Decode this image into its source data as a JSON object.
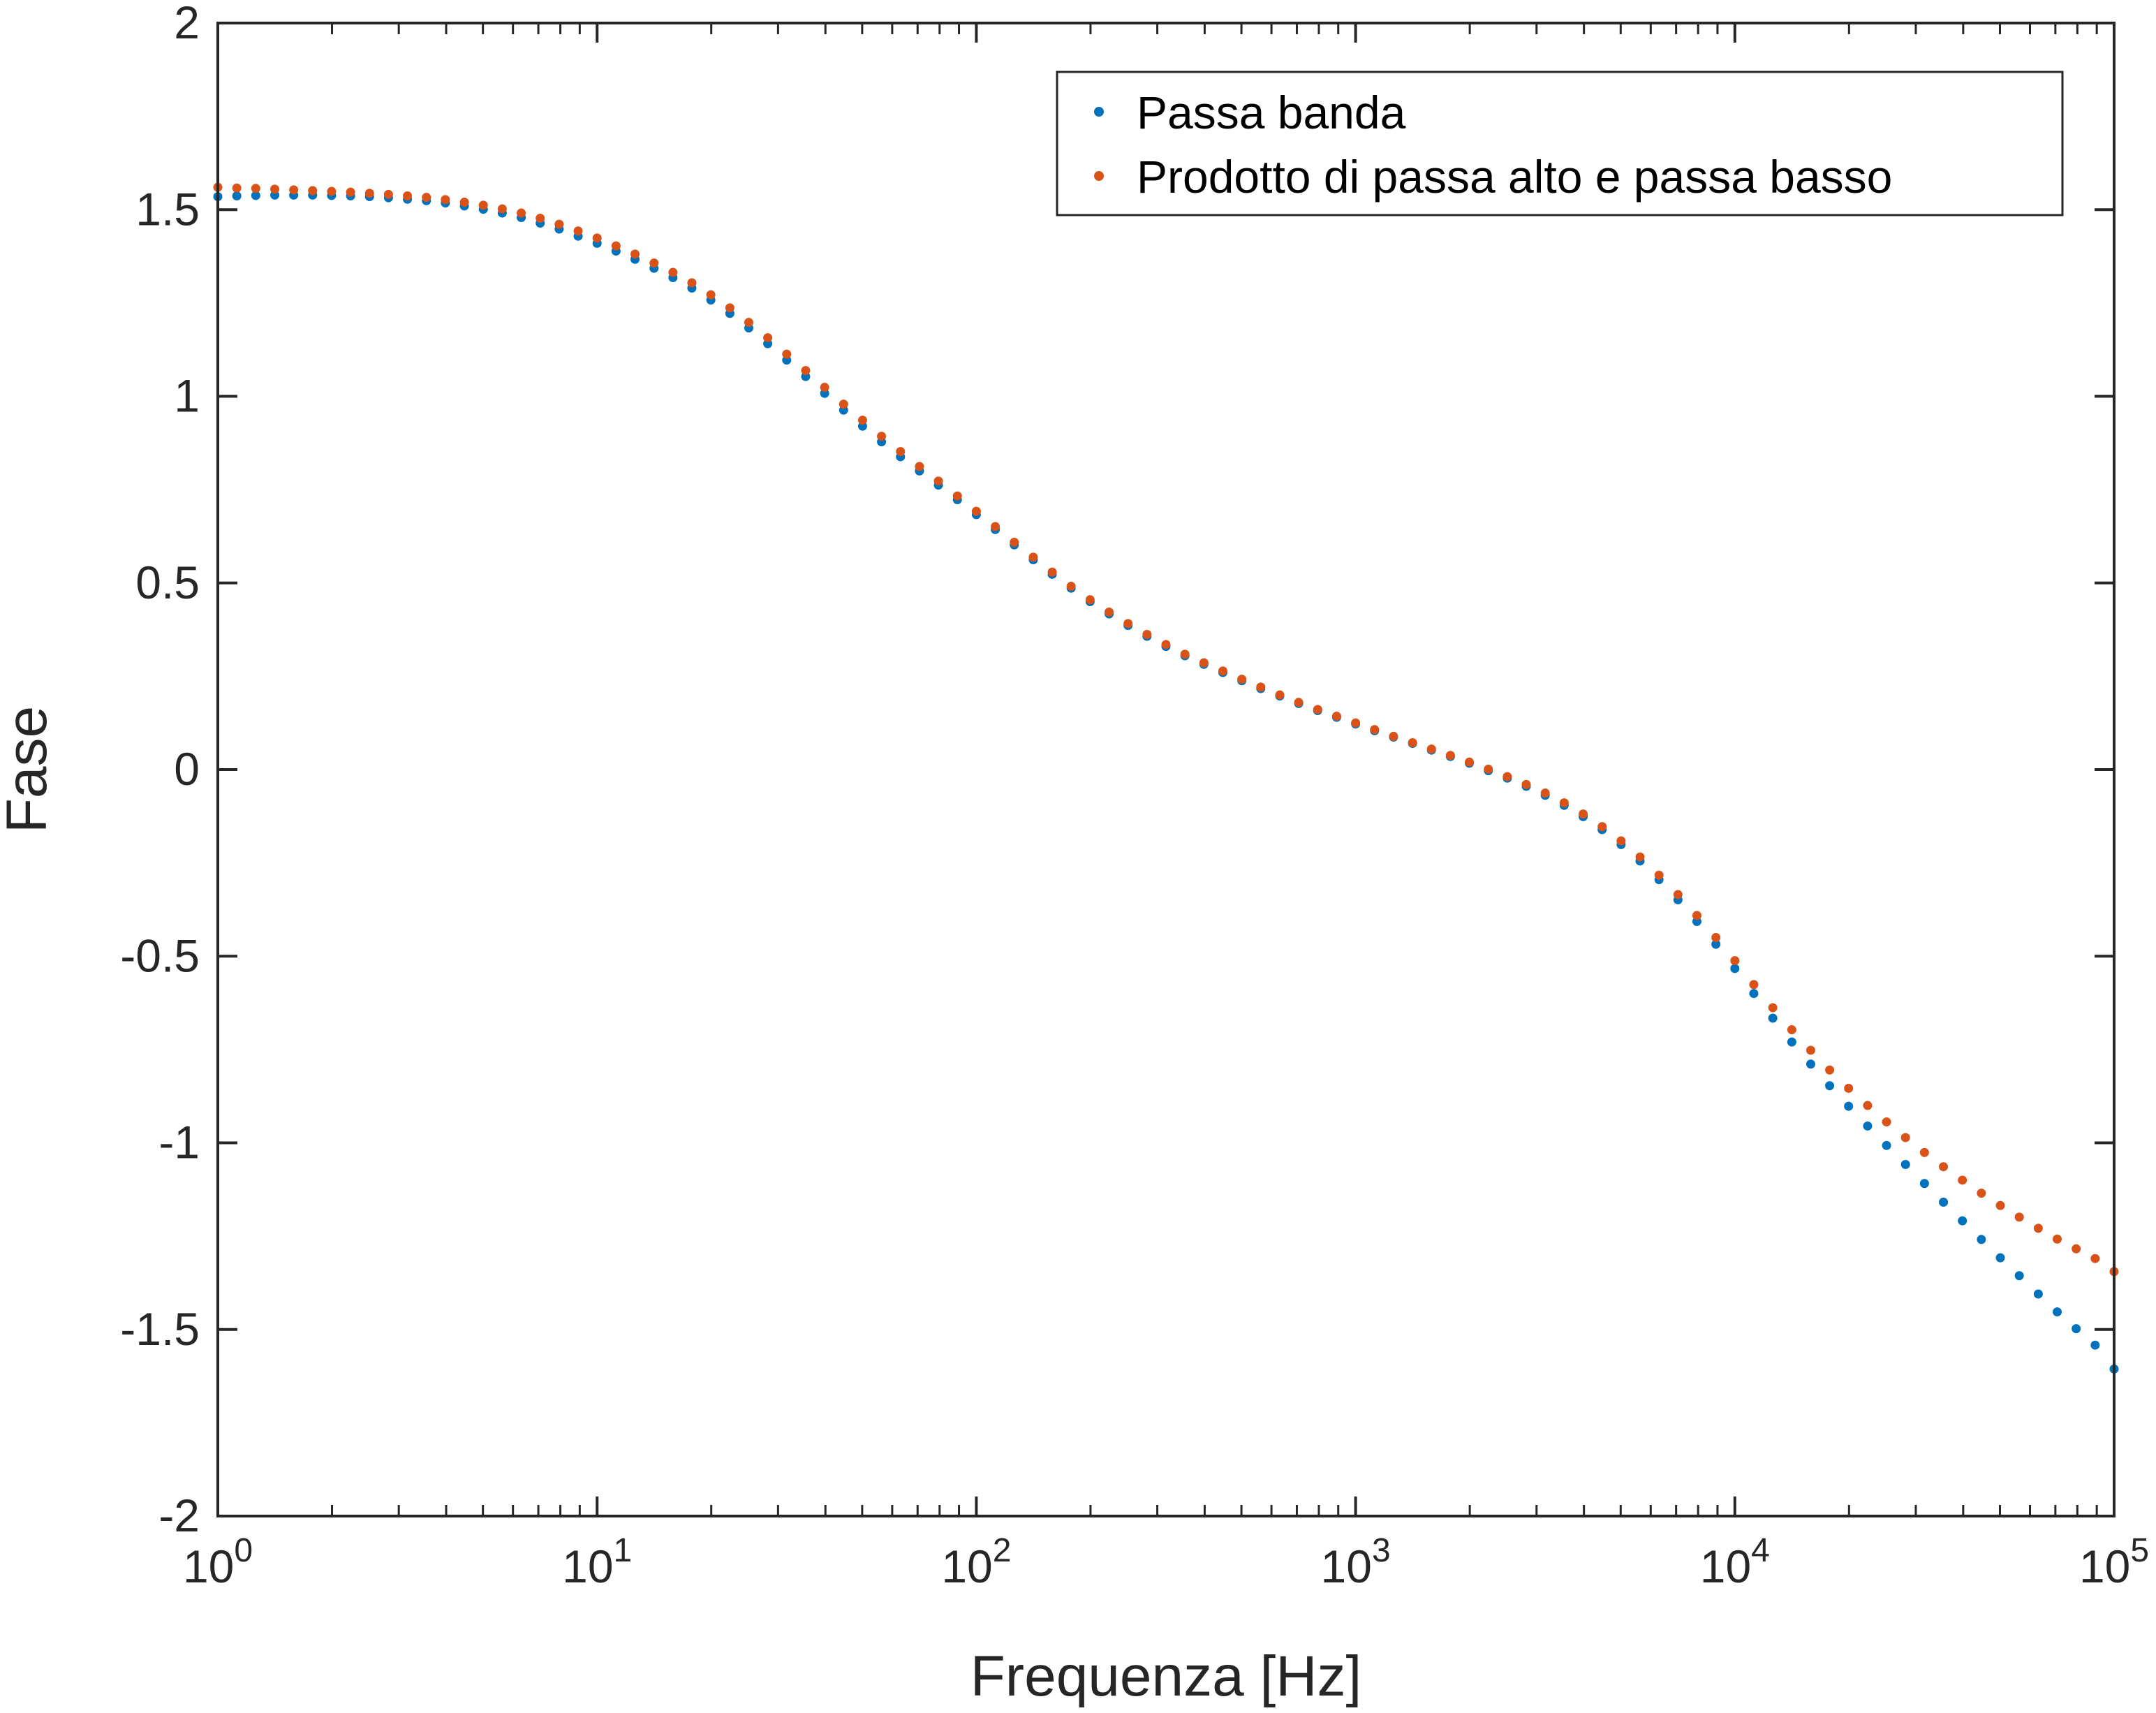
{
  "chart_data": {
    "type": "scatter",
    "xlabel": "Frequenza [Hz]",
    "ylabel": "Fase",
    "xscale": "log",
    "xlim": [
      1,
      100000
    ],
    "ylim": [
      -2,
      2
    ],
    "xticks": [
      {
        "value": 1,
        "base": "10",
        "exp": "0"
      },
      {
        "value": 10,
        "base": "10",
        "exp": "1"
      },
      {
        "value": 100,
        "base": "10",
        "exp": "2"
      },
      {
        "value": 1000,
        "base": "10",
        "exp": "3"
      },
      {
        "value": 10000,
        "base": "10",
        "exp": "4"
      },
      {
        "value": 100000,
        "base": "10",
        "exp": "5"
      }
    ],
    "yticks": [
      {
        "value": 2,
        "label": "2"
      },
      {
        "value": 1.5,
        "label": "1.5"
      },
      {
        "value": 1,
        "label": "1"
      },
      {
        "value": 0.5,
        "label": "0.5"
      },
      {
        "value": 0,
        "label": "0"
      },
      {
        "value": -0.5,
        "label": "-0.5"
      },
      {
        "value": -1,
        "label": "-1"
      },
      {
        "value": -1.5,
        "label": "-1.5"
      },
      {
        "value": -2,
        "label": "-2"
      }
    ],
    "grid": false,
    "legend_position": "top-right",
    "series": [
      {
        "name": "Passa banda",
        "color": "#0072BD",
        "x": [
          1,
          1.122,
          1.259,
          1.413,
          1.585,
          1.778,
          1.995,
          2.239,
          2.512,
          2.818,
          3.162,
          3.548,
          3.981,
          4.467,
          5.012,
          5.623,
          6.31,
          7.079,
          7.943,
          8.913,
          10,
          11.22,
          12.59,
          14.13,
          15.85,
          17.78,
          19.95,
          22.39,
          25.12,
          28.18,
          31.62,
          35.48,
          39.81,
          44.67,
          50.12,
          56.23,
          63.1,
          70.79,
          79.43,
          89.13,
          100,
          112.2,
          125.9,
          141.3,
          158.5,
          177.8,
          199.5,
          223.9,
          251.2,
          281.8,
          316.2,
          354.8,
          398.1,
          446.7,
          501.2,
          562.3,
          631,
          707.9,
          794.3,
          891.3,
          1000,
          1122,
          1259,
          1413,
          1585,
          1778,
          1995,
          2239,
          2512,
          2818,
          3162,
          3548,
          3981,
          4467,
          5012,
          5623,
          6310,
          7079,
          7943,
          8913,
          10000,
          11220,
          12590,
          14130,
          15850,
          17780,
          19950,
          22390,
          25120,
          28180,
          31620,
          35480,
          39810,
          44670,
          50120,
          56230,
          63100,
          70790,
          79430,
          89130,
          100000
        ],
        "y": [
          1.535,
          1.537,
          1.538,
          1.539,
          1.539,
          1.539,
          1.538,
          1.537,
          1.535,
          1.532,
          1.528,
          1.524,
          1.518,
          1.51,
          1.501,
          1.491,
          1.479,
          1.464,
          1.448,
          1.429,
          1.41,
          1.389,
          1.367,
          1.343,
          1.318,
          1.29,
          1.258,
          1.222,
          1.183,
          1.141,
          1.097,
          1.053,
          1.008,
          0.963,
          0.92,
          0.878,
          0.838,
          0.8,
          0.762,
          0.723,
          0.683,
          0.643,
          0.602,
          0.562,
          0.523,
          0.486,
          0.45,
          0.417,
          0.386,
          0.357,
          0.33,
          0.305,
          0.282,
          0.26,
          0.238,
          0.217,
          0.197,
          0.177,
          0.158,
          0.14,
          0.122,
          0.104,
          0.087,
          0.07,
          0.052,
          0.035,
          0.017,
          -0.003,
          -0.023,
          -0.045,
          -0.069,
          -0.096,
          -0.126,
          -0.161,
          -0.201,
          -0.245,
          -0.295,
          -0.349,
          -0.407,
          -0.468,
          -0.533,
          -0.6,
          -0.666,
          -0.73,
          -0.789,
          -0.847,
          -0.902,
          -0.955,
          -1.007,
          -1.058,
          -1.109,
          -1.159,
          -1.209,
          -1.259,
          -1.308,
          -1.356,
          -1.405,
          -1.453,
          -1.498,
          -1.542,
          -1.606
        ]
      },
      {
        "name": "Prodotto di passa alto e passa basso",
        "color": "#D95319",
        "x": [
          1,
          1.122,
          1.259,
          1.413,
          1.585,
          1.778,
          1.995,
          2.239,
          2.512,
          2.818,
          3.162,
          3.548,
          3.981,
          4.467,
          5.012,
          5.623,
          6.31,
          7.079,
          7.943,
          8.913,
          10,
          11.22,
          12.59,
          14.13,
          15.85,
          17.78,
          19.95,
          22.39,
          25.12,
          28.18,
          31.62,
          35.48,
          39.81,
          44.67,
          50.12,
          56.23,
          63.1,
          70.79,
          79.43,
          89.13,
          100,
          112.2,
          125.9,
          141.3,
          158.5,
          177.8,
          199.5,
          223.9,
          251.2,
          281.8,
          316.2,
          354.8,
          398.1,
          446.7,
          501.2,
          562.3,
          631,
          707.9,
          794.3,
          891.3,
          1000,
          1122,
          1259,
          1413,
          1585,
          1778,
          1995,
          2239,
          2512,
          2818,
          3162,
          3548,
          3981,
          4467,
          5012,
          5623,
          6310,
          7079,
          7943,
          8913,
          10000,
          11220,
          12590,
          14130,
          15850,
          17780,
          19950,
          22390,
          25120,
          28180,
          31620,
          35480,
          39810,
          44670,
          50120,
          56230,
          63100,
          70790,
          79430,
          89130,
          100000
        ],
        "y": [
          1.56,
          1.558,
          1.557,
          1.555,
          1.553,
          1.551,
          1.549,
          1.547,
          1.544,
          1.541,
          1.537,
          1.533,
          1.527,
          1.52,
          1.512,
          1.502,
          1.491,
          1.477,
          1.461,
          1.443,
          1.424,
          1.403,
          1.381,
          1.357,
          1.332,
          1.304,
          1.272,
          1.237,
          1.198,
          1.157,
          1.113,
          1.069,
          1.024,
          0.979,
          0.936,
          0.893,
          0.852,
          0.812,
          0.773,
          0.733,
          0.692,
          0.651,
          0.609,
          0.569,
          0.529,
          0.491,
          0.455,
          0.422,
          0.391,
          0.362,
          0.335,
          0.309,
          0.286,
          0.264,
          0.242,
          0.221,
          0.2,
          0.18,
          0.161,
          0.143,
          0.125,
          0.107,
          0.089,
          0.072,
          0.055,
          0.038,
          0.02,
          0.001,
          -0.019,
          -0.04,
          -0.063,
          -0.089,
          -0.119,
          -0.153,
          -0.191,
          -0.234,
          -0.283,
          -0.335,
          -0.391,
          -0.45,
          -0.512,
          -0.576,
          -0.638,
          -0.697,
          -0.752,
          -0.805,
          -0.854,
          -0.9,
          -0.944,
          -0.986,
          -1.026,
          -1.064,
          -1.1,
          -1.135,
          -1.168,
          -1.199,
          -1.229,
          -1.258,
          -1.284,
          -1.31,
          -1.345
        ]
      }
    ]
  }
}
